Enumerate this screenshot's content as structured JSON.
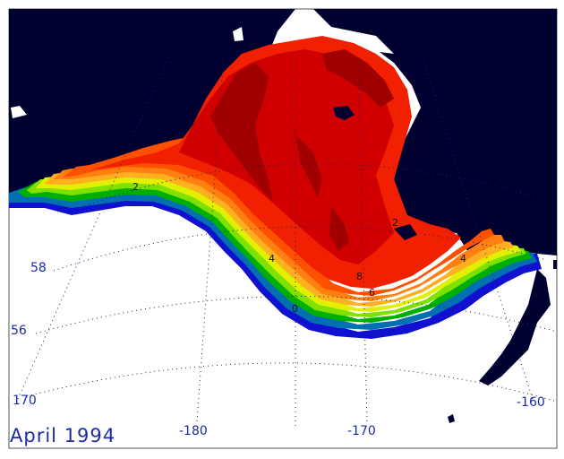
{
  "map": {
    "title": "April 1994",
    "lat_labels": [
      "58",
      "56"
    ],
    "lon_labels_left": [
      "170"
    ],
    "lon_labels_bottom": [
      "-180",
      "-170",
      "-160"
    ],
    "contour_labels": [
      "4",
      "8",
      "6",
      "0",
      "2",
      "4",
      "2"
    ]
  },
  "colors": {
    "land": "#000030",
    "ocean_nodata": "#ffffff",
    "grid": "#202060",
    "label_text": "#1c2aa6",
    "scale": [
      "#1010d0",
      "#0070b0",
      "#00b000",
      "#80e000",
      "#e0f000",
      "#ffb020",
      "#ff8010",
      "#ff5000",
      "#f02000",
      "#d00000",
      "#a00000"
    ]
  }
}
